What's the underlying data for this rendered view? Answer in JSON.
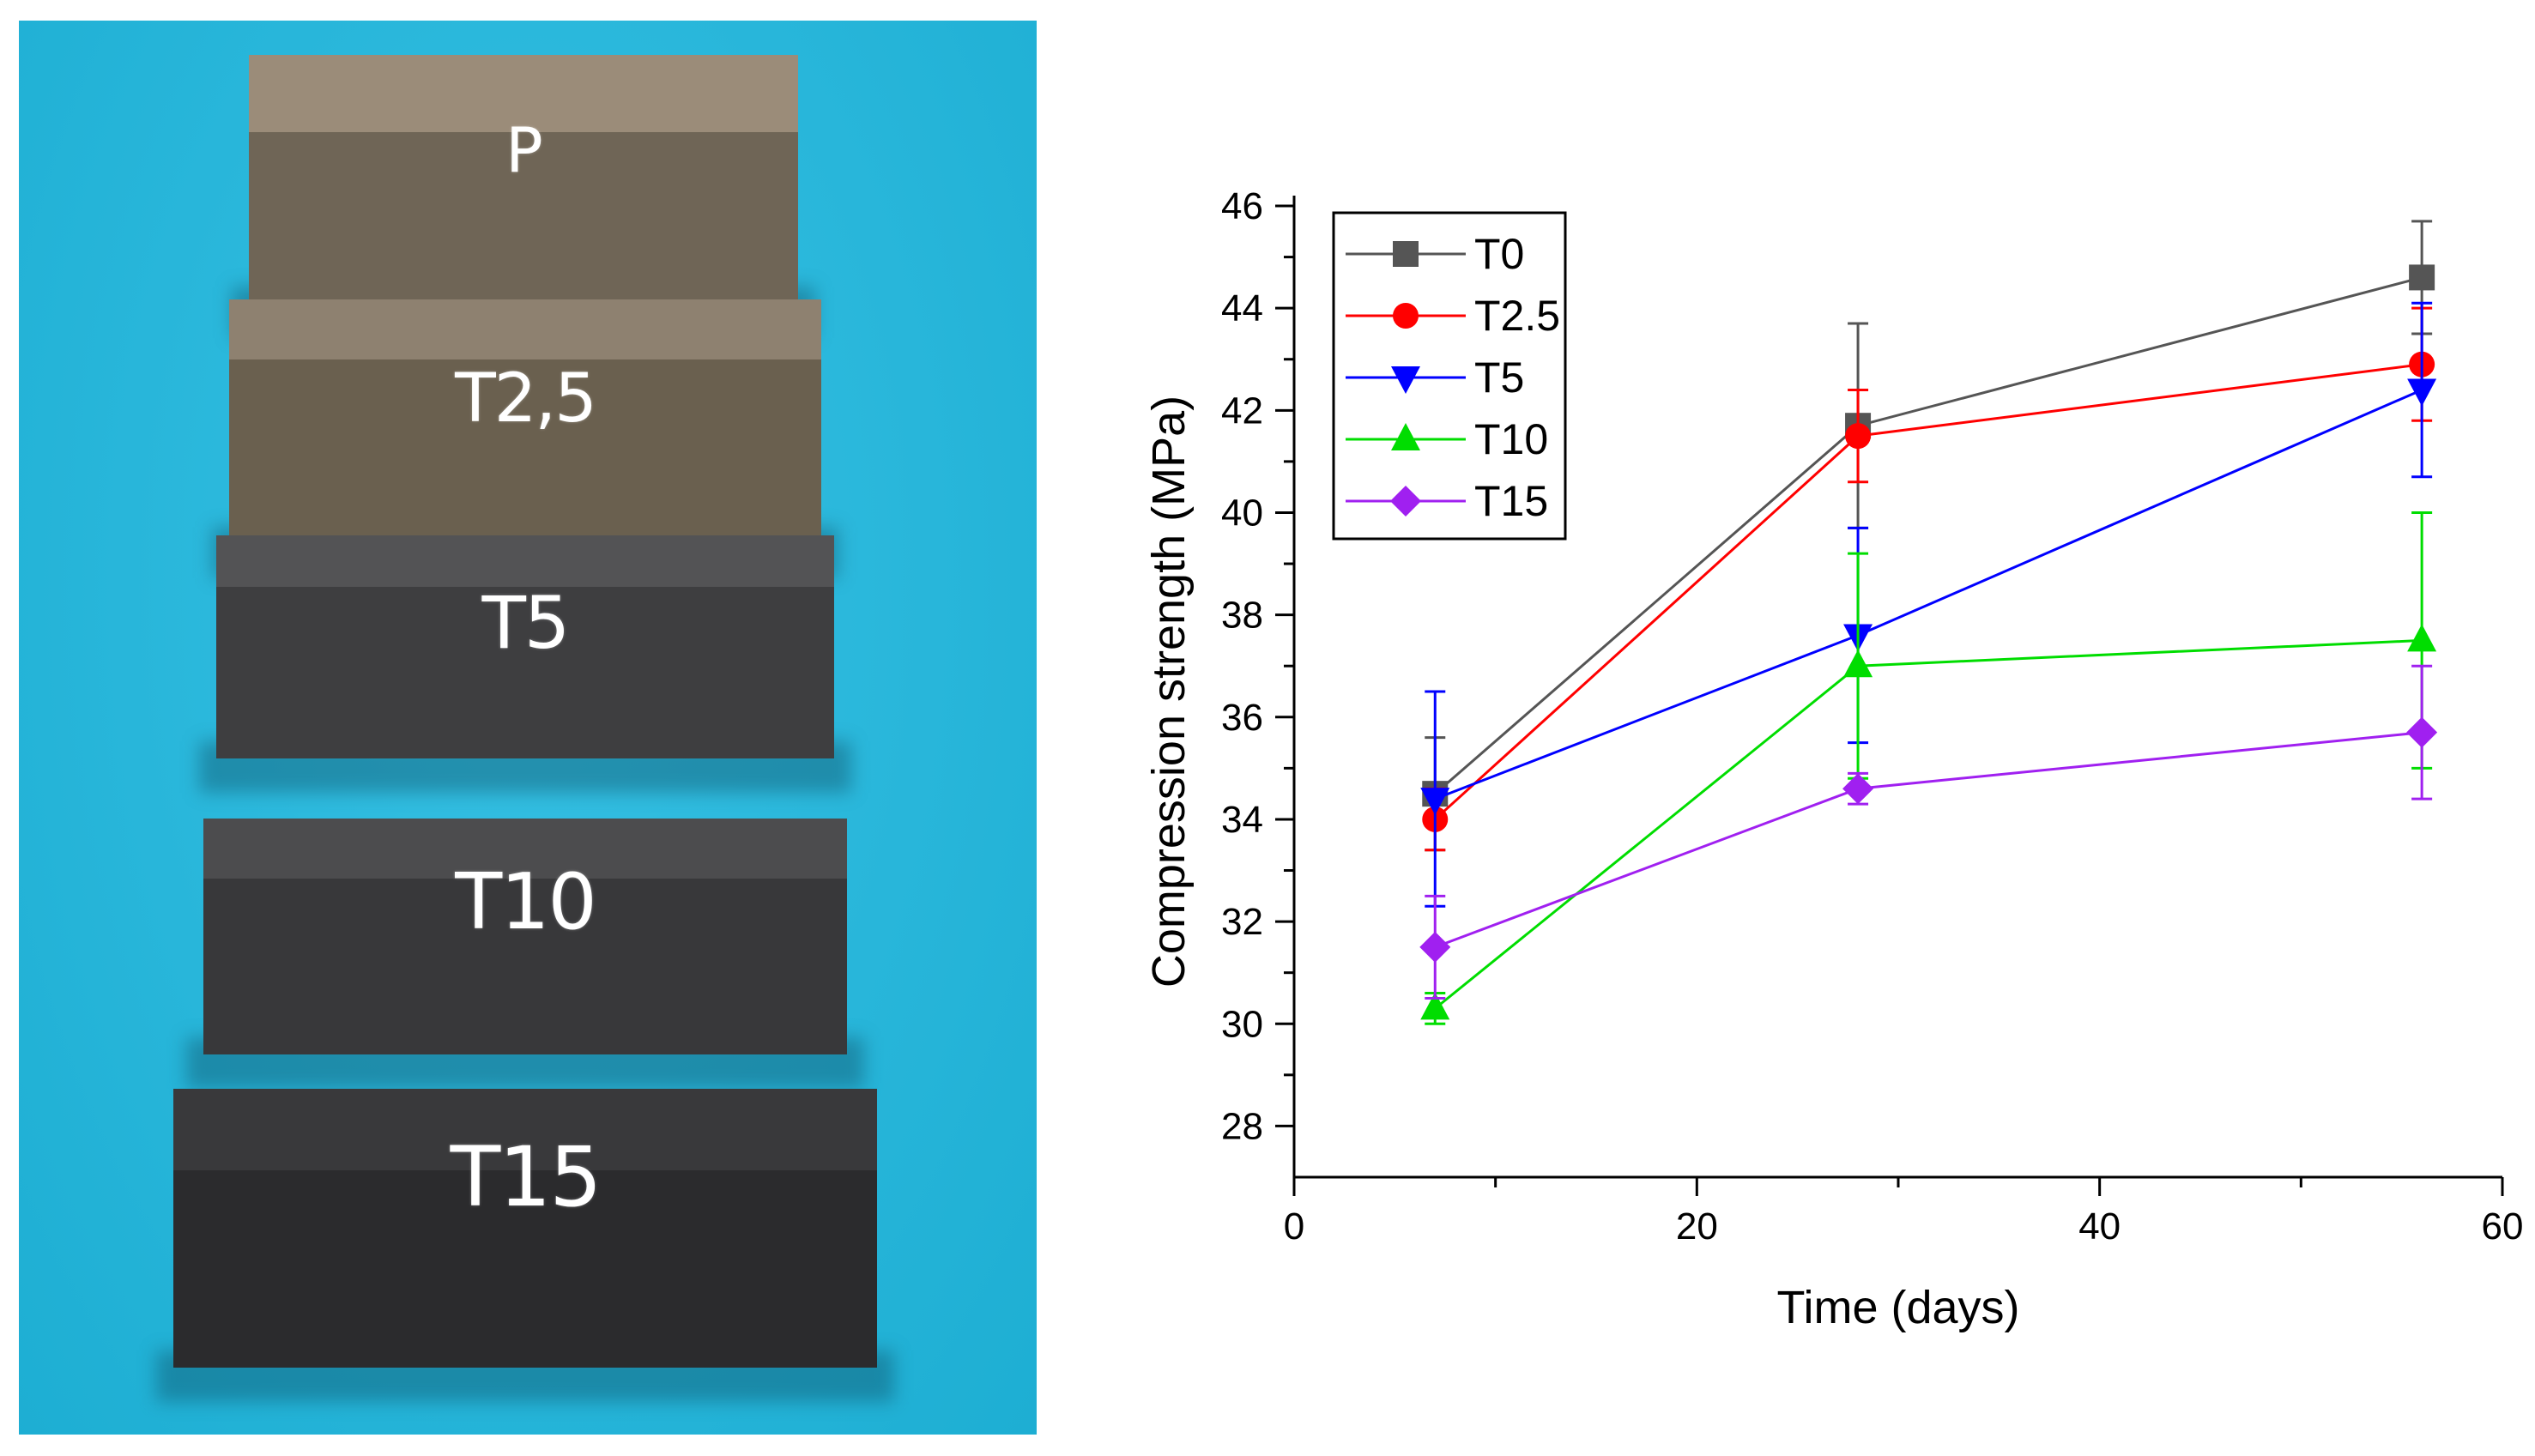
{
  "photo": {
    "specimens": [
      {
        "label": "P",
        "color_top": "#8a7d6c",
        "color_front": "#6f6556"
      },
      {
        "label": "T2,5",
        "color_top": "#7f7364",
        "color_front": "#6a604f"
      },
      {
        "label": "T5",
        "color_top": "#4a4a4c",
        "color_front": "#3e3e40"
      },
      {
        "label": "T10",
        "color_top": "#444446",
        "color_front": "#38383a"
      },
      {
        "label": "T15",
        "color_top": "#333335",
        "color_front": "#2b2b2d"
      }
    ],
    "background_color": "#1fb9e0"
  },
  "chart_data": {
    "type": "line",
    "title": "",
    "xlabel": "Time (days)",
    "ylabel": "Compression strength (MPa)",
    "xlim": [
      0,
      60
    ],
    "ylim": [
      27,
      46
    ],
    "xticks": [
      0,
      20,
      40,
      60
    ],
    "yticks": [
      28,
      30,
      32,
      34,
      36,
      38,
      40,
      42,
      44,
      46
    ],
    "grid": false,
    "legend_position": "top-left",
    "x": [
      7,
      28,
      56
    ],
    "series": [
      {
        "name": "T0",
        "color": "#555555",
        "marker": "square",
        "values": [
          34.5,
          41.7,
          44.6
        ],
        "errors": [
          1.1,
          2.0,
          1.1
        ]
      },
      {
        "name": "T2.5",
        "color": "#ff0000",
        "marker": "circle",
        "values": [
          34.0,
          41.5,
          42.9
        ],
        "errors": [
          0.6,
          0.9,
          1.1
        ]
      },
      {
        "name": "T5",
        "color": "#0000ff",
        "marker": "triangle-down",
        "values": [
          34.4,
          37.6,
          42.4
        ],
        "errors": [
          2.1,
          2.1,
          1.7
        ]
      },
      {
        "name": "T10",
        "color": "#00dd00",
        "marker": "triangle-up",
        "values": [
          30.3,
          37.0,
          37.5
        ],
        "errors": [
          0.3,
          2.2,
          2.5
        ]
      },
      {
        "name": "T15",
        "color": "#a020f0",
        "marker": "diamond",
        "values": [
          31.5,
          34.6,
          35.7
        ],
        "errors": [
          1.0,
          0.3,
          1.3
        ]
      }
    ]
  }
}
